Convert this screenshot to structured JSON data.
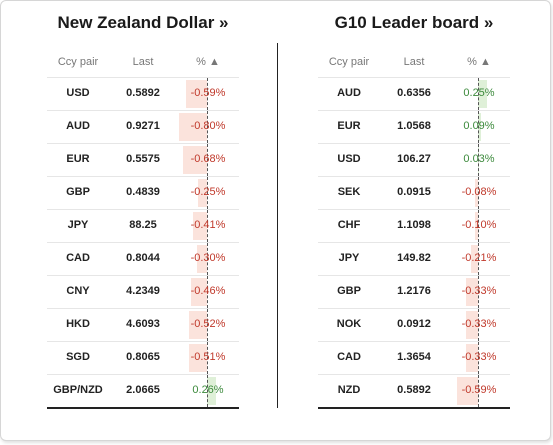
{
  "colors": {
    "negative": "#c0392b",
    "positive": "#3c8a3c",
    "neg_bar": "#fbe3dc",
    "pos_bar": "#dff0d8"
  },
  "left": {
    "title": "New Zealand Dollar »",
    "headers": {
      "pair": "Ccy pair",
      "last": "Last",
      "pct": "% ▲"
    },
    "rows": [
      {
        "pair": "USD",
        "last": "0.5892",
        "pct": "-0.59%",
        "value": -0.59
      },
      {
        "pair": "AUD",
        "last": "0.9271",
        "pct": "-0.80%",
        "value": -0.8
      },
      {
        "pair": "EUR",
        "last": "0.5575",
        "pct": "-0.68%",
        "value": -0.68
      },
      {
        "pair": "GBP",
        "last": "0.4839",
        "pct": "-0.25%",
        "value": -0.25
      },
      {
        "pair": "JPY",
        "last": "88.25",
        "pct": "-0.41%",
        "value": -0.41
      },
      {
        "pair": "CAD",
        "last": "0.8044",
        "pct": "-0.30%",
        "value": -0.3
      },
      {
        "pair": "CNY",
        "last": "4.2349",
        "pct": "-0.46%",
        "value": -0.46
      },
      {
        "pair": "HKD",
        "last": "4.6093",
        "pct": "-0.52%",
        "value": -0.52
      },
      {
        "pair": "SGD",
        "last": "0.8065",
        "pct": "-0.51%",
        "value": -0.51
      },
      {
        "pair": "GBP/NZD",
        "last": "2.0665",
        "pct": "0.26%",
        "value": 0.26
      }
    ]
  },
  "right": {
    "title": "G10 Leader board »",
    "headers": {
      "pair": "Ccy pair",
      "last": "Last",
      "pct": "% ▲"
    },
    "rows": [
      {
        "pair": "AUD",
        "last": "0.6356",
        "pct": "0.25%",
        "value": 0.25
      },
      {
        "pair": "EUR",
        "last": "1.0568",
        "pct": "0.09%",
        "value": 0.09
      },
      {
        "pair": "USD",
        "last": "106.27",
        "pct": "0.03%",
        "value": 0.03
      },
      {
        "pair": "SEK",
        "last": "0.0915",
        "pct": "-0.08%",
        "value": -0.08
      },
      {
        "pair": "CHF",
        "last": "1.1098",
        "pct": "-0.10%",
        "value": -0.1
      },
      {
        "pair": "JPY",
        "last": "149.82",
        "pct": "-0.21%",
        "value": -0.21
      },
      {
        "pair": "GBP",
        "last": "1.2176",
        "pct": "-0.33%",
        "value": -0.33
      },
      {
        "pair": "NOK",
        "last": "0.0912",
        "pct": "-0.33%",
        "value": -0.33
      },
      {
        "pair": "CAD",
        "last": "1.3654",
        "pct": "-0.33%",
        "value": -0.33
      },
      {
        "pair": "NZD",
        "last": "0.5892",
        "pct": "-0.59%",
        "value": -0.59
      }
    ]
  }
}
